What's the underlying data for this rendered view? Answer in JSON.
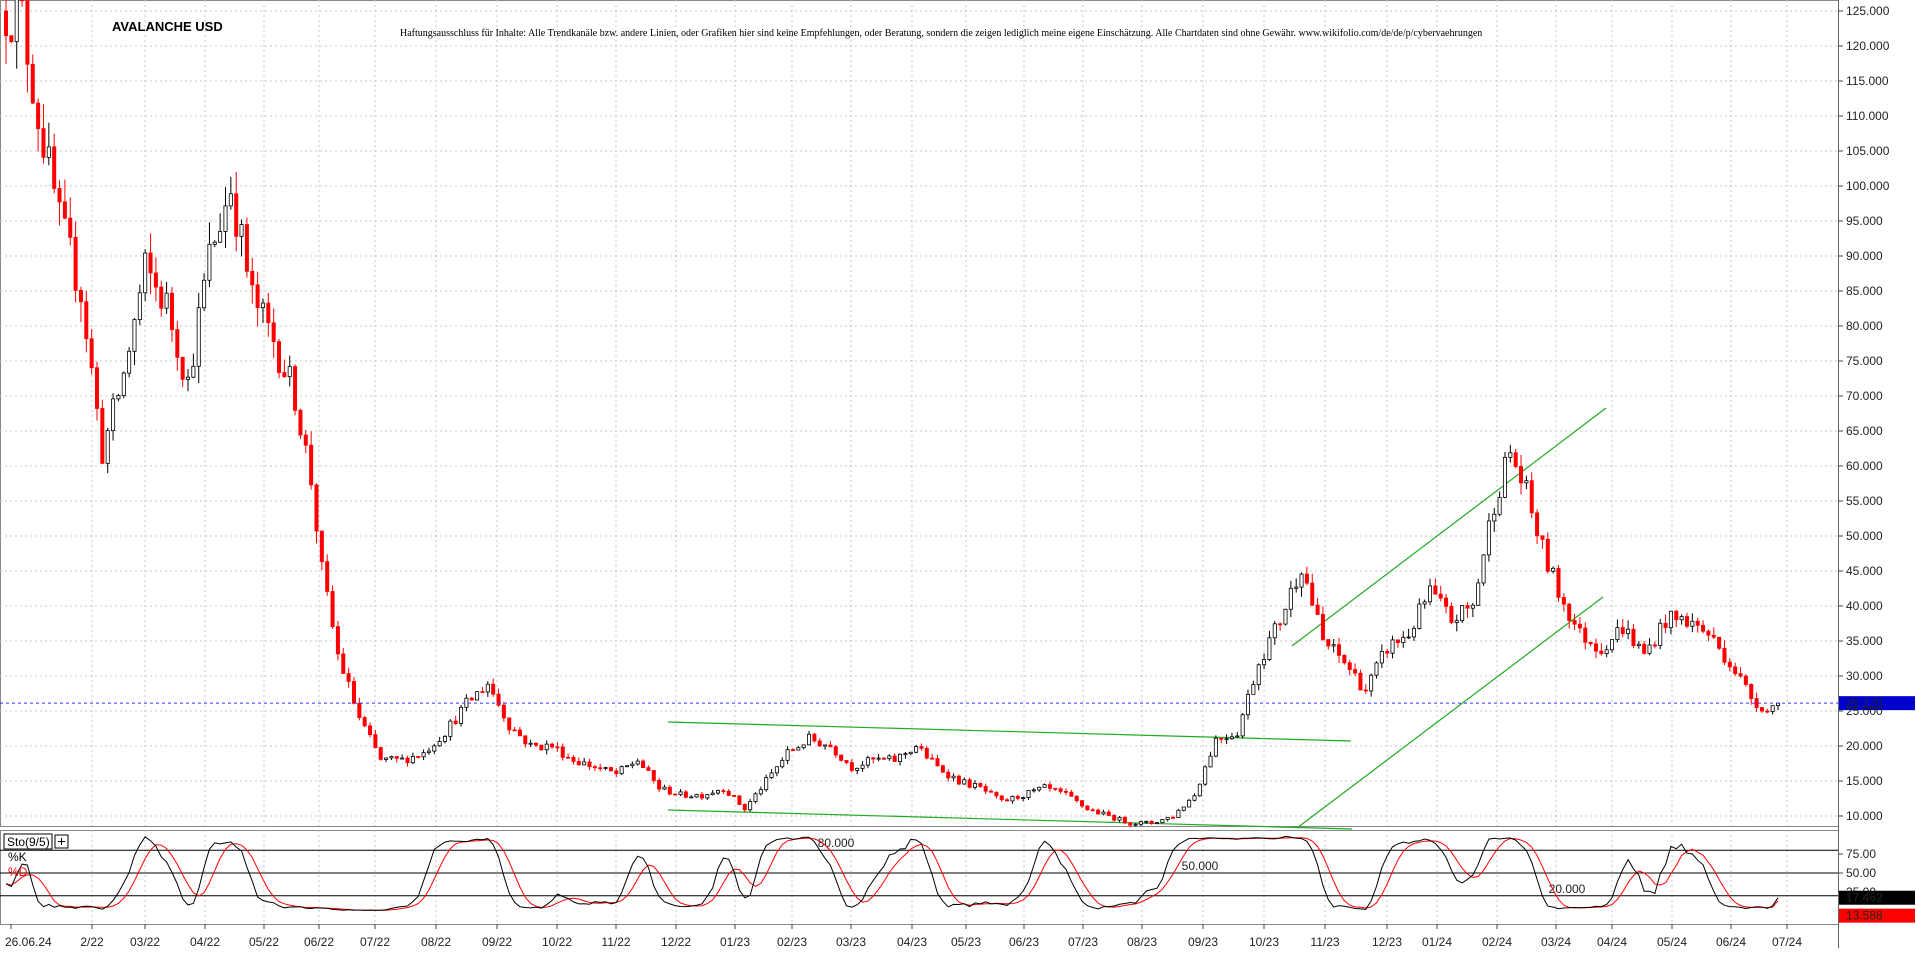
{
  "chart_data": {
    "type": "candlestick",
    "title": "AVALANCHE USD",
    "disclaimer": "Haftungsausschluss für Inhalte: Alle Trendkanäle bzw. andere Linien, oder Grafiken hier sind keine Empfehlungen, oder Beratung, sondern die zeigen lediglich meine eigene Einschätzung. Alle Chartdaten sind ohne Gewähr. www.wikifolio.com/de/de/p/cybervaehrungen",
    "y_ticks": [
      "10.000",
      "15.000",
      "20.000",
      "25.000",
      "30.000",
      "35.000",
      "40.000",
      "45.000",
      "50.000",
      "55.000",
      "60.000",
      "65.000",
      "70.000",
      "75.000",
      "80.000",
      "85.000",
      "90.000",
      "95.000",
      "100.000",
      "105.000",
      "110.000",
      "115.000",
      "120.000",
      "125.000"
    ],
    "ylim": [
      8,
      127
    ],
    "x_ticks": [
      "26.06.24",
      "2/22",
      "03/22",
      "04/22",
      "05/22",
      "06/22",
      "07/22",
      "08/22",
      "09/22",
      "10/22",
      "11/22",
      "12/22",
      "01/23",
      "02/23",
      "03/23",
      "04/23",
      "05/23",
      "06/23",
      "07/23",
      "08/23",
      "09/23",
      "10/23",
      "11/23",
      "12/23",
      "01/24",
      "02/24",
      "03/24",
      "04/24",
      "05/24",
      "06/24",
      "07/24"
    ],
    "last_price": {
      "value": 26.12,
      "label": "26.120"
    },
    "anchors": [
      [
        0,
        125
      ],
      [
        3,
        124
      ],
      [
        6,
        110
      ],
      [
        10,
        95
      ],
      [
        14,
        85
      ],
      [
        18,
        62
      ],
      [
        22,
        73
      ],
      [
        26,
        88
      ],
      [
        30,
        83
      ],
      [
        34,
        72
      ],
      [
        38,
        90
      ],
      [
        42,
        100
      ],
      [
        46,
        84
      ],
      [
        50,
        78
      ],
      [
        54,
        70
      ],
      [
        57,
        58
      ],
      [
        59,
        45
      ],
      [
        62,
        33
      ],
      [
        66,
        24
      ],
      [
        70,
        18
      ],
      [
        74,
        18
      ],
      [
        78,
        19
      ],
      [
        82,
        22
      ],
      [
        86,
        26
      ],
      [
        90,
        29
      ],
      [
        94,
        23
      ],
      [
        98,
        20
      ],
      [
        102,
        20
      ],
      [
        106,
        18
      ],
      [
        110,
        17
      ],
      [
        114,
        16
      ],
      [
        118,
        18
      ],
      [
        122,
        14
      ],
      [
        126,
        13
      ],
      [
        130,
        13
      ],
      [
        134,
        14
      ],
      [
        138,
        11
      ],
      [
        142,
        15
      ],
      [
        146,
        19
      ],
      [
        150,
        21
      ],
      [
        154,
        20
      ],
      [
        158,
        17
      ],
      [
        162,
        18
      ],
      [
        166,
        18
      ],
      [
        170,
        20
      ],
      [
        174,
        17
      ],
      [
        178,
        15
      ],
      [
        182,
        14
      ],
      [
        186,
        12
      ],
      [
        190,
        13
      ],
      [
        194,
        14
      ],
      [
        198,
        13
      ],
      [
        202,
        11
      ],
      [
        206,
        10
      ],
      [
        210,
        9
      ],
      [
        214,
        9
      ],
      [
        218,
        10
      ],
      [
        222,
        13
      ],
      [
        226,
        21
      ],
      [
        230,
        22
      ],
      [
        234,
        32
      ],
      [
        238,
        38
      ],
      [
        242,
        46
      ],
      [
        246,
        35
      ],
      [
        250,
        32
      ],
      [
        254,
        28
      ],
      [
        258,
        34
      ],
      [
        262,
        36
      ],
      [
        266,
        42
      ],
      [
        270,
        38
      ],
      [
        274,
        40
      ],
      [
        278,
        55
      ],
      [
        281,
        62
      ],
      [
        284,
        56
      ],
      [
        287,
        48
      ],
      [
        290,
        42
      ],
      [
        294,
        36
      ],
      [
        298,
        34
      ],
      [
        302,
        37
      ],
      [
        306,
        33
      ],
      [
        310,
        38
      ],
      [
        314,
        38
      ],
      [
        318,
        36
      ],
      [
        322,
        32
      ],
      [
        326,
        27
      ],
      [
        329,
        25
      ],
      [
        331,
        26.12
      ]
    ],
    "indicator": {
      "name": "Sto(9/5)",
      "k_label": "%K",
      "d_label": "%D",
      "levels": [
        {
          "value": 80,
          "label": "80.000"
        },
        {
          "value": 50,
          "label": "50.000"
        },
        {
          "value": 20,
          "label": "20.000"
        }
      ],
      "y_ticks": [
        "25.00",
        "50.00",
        "75.00"
      ],
      "k_value": {
        "value": 17.462,
        "label": "17.462"
      },
      "d_value": {
        "value": 13.588,
        "label": "13.588"
      }
    }
  }
}
